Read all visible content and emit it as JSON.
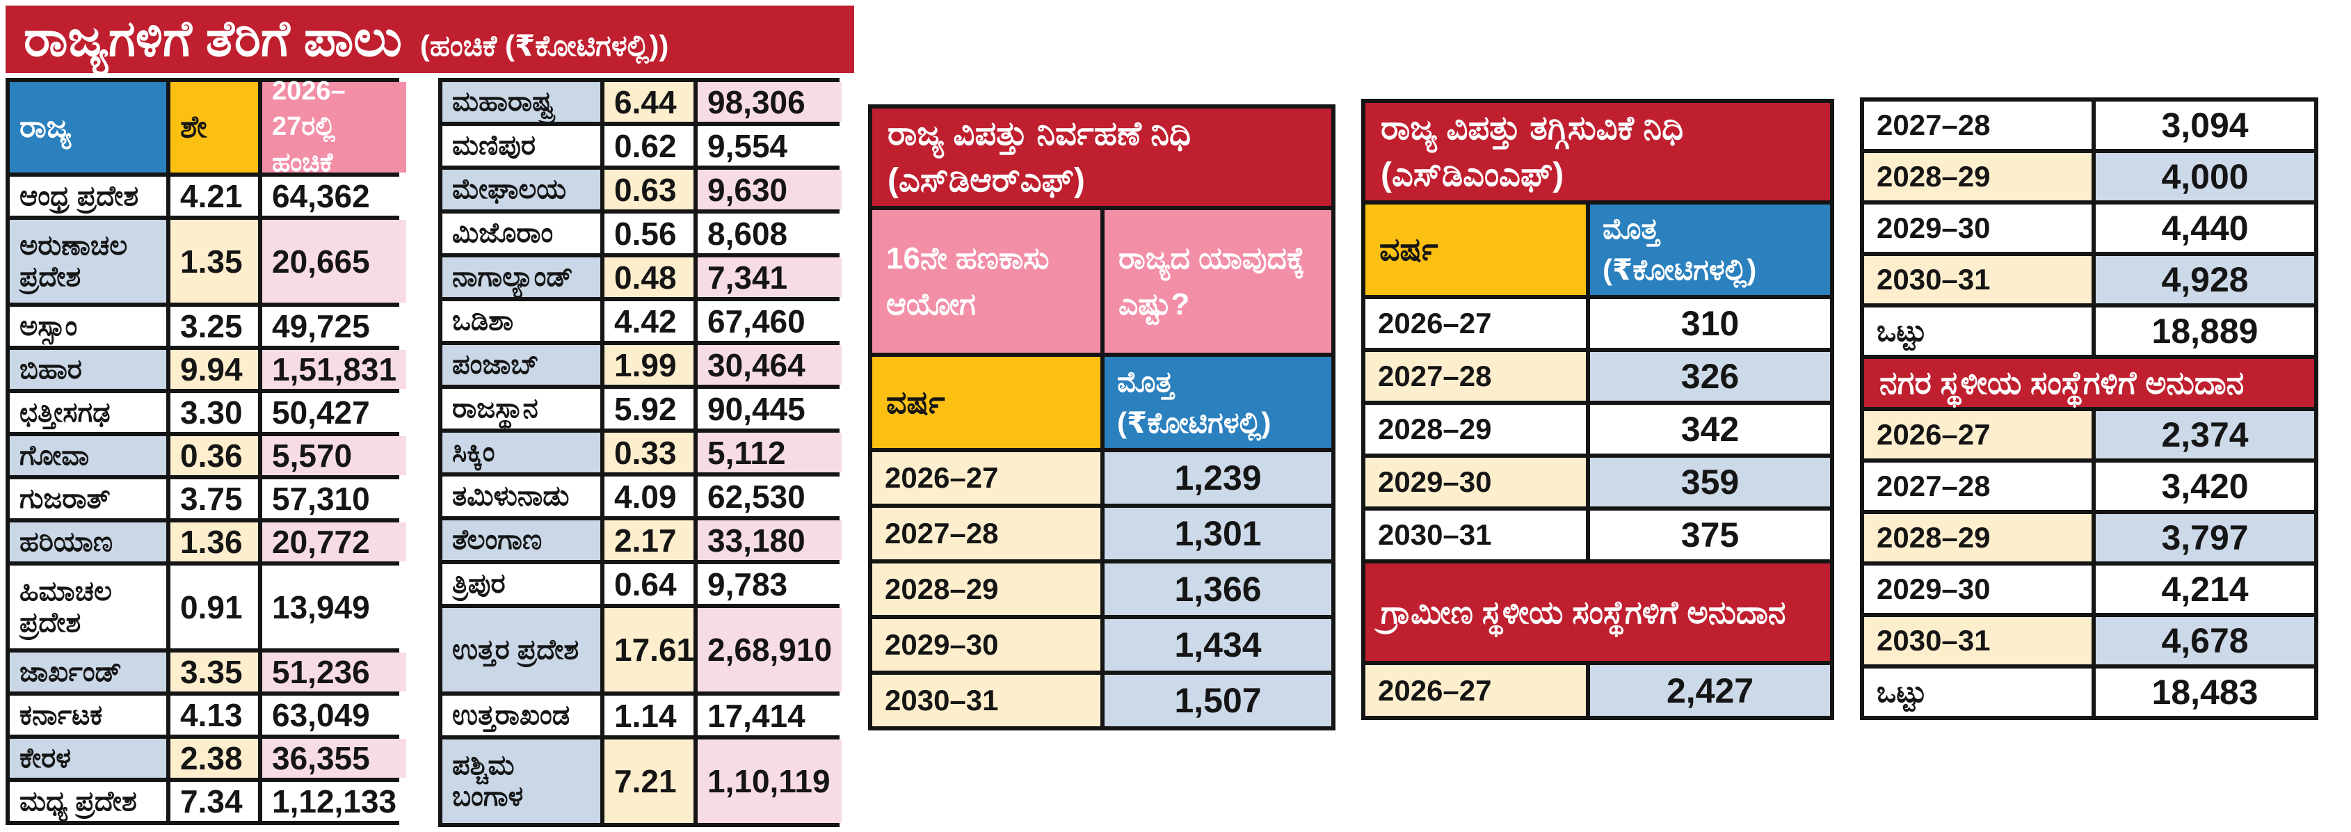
{
  "title": {
    "main": "ರಾಜ್ಯಗಳಿಗೆ ತೆರಿಗೆ ಪಾಲು",
    "sub": "(ಹಂಚಿಕೆ (₹ಕೋಟಿಗಳಲ್ಲಿ))"
  },
  "states": {
    "header_state": "ರಾಜ್ಯ",
    "header_pct": "ಶೇ",
    "header_alloc": "2026–27ರಲ್ಲಿ ಹಂಚಿಕೆ",
    "left_rows": [
      {
        "state": "ಆಂಧ್ರ ಪ್ರದೇಶ",
        "pct": "4.21",
        "alloc": "64,362",
        "shaded": false,
        "tall": false
      },
      {
        "state": "ಅರುಣಾಚಲ ಪ್ರದೇಶ",
        "pct": "1.35",
        "alloc": "20,665",
        "shaded": true,
        "tall": true
      },
      {
        "state": "ಅಸ್ಸಾಂ",
        "pct": "3.25",
        "alloc": "49,725",
        "shaded": false,
        "tall": false
      },
      {
        "state": "ಬಿಹಾರ",
        "pct": "9.94",
        "alloc": "1,51,831",
        "shaded": true,
        "tall": false
      },
      {
        "state": "ಛತ್ತೀಸಗಢ",
        "pct": "3.30",
        "alloc": "50,427",
        "shaded": false,
        "tall": false
      },
      {
        "state": "ಗೋವಾ",
        "pct": "0.36",
        "alloc": "5,570",
        "shaded": true,
        "tall": false
      },
      {
        "state": "ಗುಜರಾತ್",
        "pct": "3.75",
        "alloc": "57,310",
        "shaded": false,
        "tall": false
      },
      {
        "state": "ಹರಿಯಾಣ",
        "pct": "1.36",
        "alloc": "20,772",
        "shaded": true,
        "tall": false
      },
      {
        "state": "ಹಿಮಾಚಲ ಪ್ರದೇಶ",
        "pct": "0.91",
        "alloc": "13,949",
        "shaded": false,
        "tall": true
      },
      {
        "state": "ಜಾರ್ಖಂಡ್",
        "pct": "3.35",
        "alloc": "51,236",
        "shaded": true,
        "tall": false
      },
      {
        "state": "ಕರ್ನಾಟಕ",
        "pct": "4.13",
        "alloc": "63,049",
        "shaded": false,
        "tall": false
      },
      {
        "state": "ಕೇರಳ",
        "pct": "2.38",
        "alloc": "36,355",
        "shaded": true,
        "tall": false
      },
      {
        "state": "ಮಧ್ಯ ಪ್ರದೇಶ",
        "pct": "7.34",
        "alloc": "1,12,133",
        "shaded": false,
        "tall": false
      }
    ],
    "right_rows": [
      {
        "state": "ಮಹಾರಾಷ್ಟ್ರ",
        "pct": "6.44",
        "alloc": "98,306",
        "shaded": true,
        "tall": false
      },
      {
        "state": "ಮಣಿಪುರ",
        "pct": "0.62",
        "alloc": "9,554",
        "shaded": false,
        "tall": false
      },
      {
        "state": "ಮೇಘಾಲಯ",
        "pct": "0.63",
        "alloc": "9,630",
        "shaded": true,
        "tall": false
      },
      {
        "state": "ಮಿಜೊರಾಂ",
        "pct": "0.56",
        "alloc": "8,608",
        "shaded": false,
        "tall": false
      },
      {
        "state": "ನಾಗಾಲ್ಯಾಂಡ್",
        "pct": "0.48",
        "alloc": "7,341",
        "shaded": true,
        "tall": false
      },
      {
        "state": "ಒಡಿಶಾ",
        "pct": "4.42",
        "alloc": "67,460",
        "shaded": false,
        "tall": false
      },
      {
        "state": "ಪಂಜಾಬ್",
        "pct": "1.99",
        "alloc": "30,464",
        "shaded": true,
        "tall": false
      },
      {
        "state": "ರಾಜಸ್ಥಾನ",
        "pct": "5.92",
        "alloc": "90,445",
        "shaded": false,
        "tall": false
      },
      {
        "state": "ಸಿಕ್ಕಿಂ",
        "pct": "0.33",
        "alloc": "5,112",
        "shaded": true,
        "tall": false
      },
      {
        "state": "ತಮಿಳುನಾಡು",
        "pct": "4.09",
        "alloc": "62,530",
        "shaded": false,
        "tall": false
      },
      {
        "state": "ತೆಲಂಗಾಣ",
        "pct": "2.17",
        "alloc": "33,180",
        "shaded": true,
        "tall": false
      },
      {
        "state": "ತ್ರಿಪುರ",
        "pct": "0.64",
        "alloc": "9,783",
        "shaded": false,
        "tall": false
      },
      {
        "state": "ಉತ್ತರ ಪ್ರದೇಶ",
        "pct": "17.61",
        "alloc": "2,68,910",
        "shaded": true,
        "tall": true
      },
      {
        "state": "ಉತ್ತರಾಖಂಡ",
        "pct": "1.14",
        "alloc": "17,414",
        "shaded": false,
        "tall": false
      },
      {
        "state": "ಪಶ್ಚಿಮ ಬಂಗಾಳ",
        "pct": "7.21",
        "alloc": "1,10,119",
        "shaded": true,
        "tall": true
      }
    ]
  },
  "sdrf": {
    "title_line1": "ರಾಜ್ಯ ವಿಪತ್ತು ನಿರ್ವಹಣೆ ನಿಧಿ",
    "title_line2": "(ಎಸ್‌ಡಿಆರ್‌ಎಫ್)",
    "subhead_left": "16ನೇ ಹಣಕಾಸು ಆಯೋಗ",
    "subhead_right": "ರಾಜ್ಯದ ಯಾವುದಕ್ಕೆ ಎಷ್ಟು?",
    "col_year": "ವರ್ಷ",
    "col_amount": "ಮೊತ್ತ (₹ಕೋಟಿಗಳಲ್ಲಿ)",
    "rows": [
      {
        "year": "2026–27",
        "amount": "1,239"
      },
      {
        "year": "2027–28",
        "amount": "1,301"
      },
      {
        "year": "2028–29",
        "amount": "1,366"
      },
      {
        "year": "2029–30",
        "amount": "1,434"
      },
      {
        "year": "2030–31",
        "amount": "1,507"
      }
    ]
  },
  "sdmf": {
    "title_line1": "ರಾಜ್ಯ ವಿಪತ್ತು ತಗ್ಗಿಸುವಿಕೆ ನಿಧಿ",
    "title_line2": "(ಎಸ್‌ಡಿಎಂಎಫ್)",
    "col_year": "ವರ್ಷ",
    "col_amount": "ಮೊತ್ತ (₹ಕೋಟಿಗಳಲ್ಲಿ)",
    "rows": [
      {
        "year": "2026–27",
        "amount": "310",
        "tinted": false
      },
      {
        "year": "2027–28",
        "amount": "326",
        "tinted": true
      },
      {
        "year": "2028–29",
        "amount": "342",
        "tinted": false
      },
      {
        "year": "2029–30",
        "amount": "359",
        "tinted": true
      },
      {
        "year": "2030–31",
        "amount": "375",
        "tinted": false
      }
    ],
    "rural_title": "ಗ್ರಾಮೀಣ ಸ್ಥಳೀಯ ಸಂಸ್ಥೆಗಳಿಗೆ ಅನುದಾನ",
    "rural_rows": [
      {
        "year": "2026–27",
        "amount": "2,427",
        "tinted": true
      }
    ]
  },
  "local": {
    "rural_continued_rows": [
      {
        "year": "2027–28",
        "amount": "3,094",
        "tinted": false
      },
      {
        "year": "2028–29",
        "amount": "4,000",
        "tinted": true
      },
      {
        "year": "2029–30",
        "amount": "4,440",
        "tinted": false
      },
      {
        "year": "2030–31",
        "amount": "4,928",
        "tinted": true
      },
      {
        "year": "ಒಟ್ಟು",
        "amount": "18,889",
        "tinted": false
      }
    ],
    "urban_title": "ನಗರ ಸ್ಥಳೀಯ ಸಂಸ್ಥೆಗಳಿಗೆ ಅನುದಾನ",
    "urban_rows": [
      {
        "year": "2026–27",
        "amount": "2,374",
        "tinted": true
      },
      {
        "year": "2027–28",
        "amount": "3,420",
        "tinted": false
      },
      {
        "year": "2028–29",
        "amount": "3,797",
        "tinted": true
      },
      {
        "year": "2029–30",
        "amount": "4,214",
        "tinted": false
      },
      {
        "year": "2030–31",
        "amount": "4,678",
        "tinted": true
      },
      {
        "year": "ಒಟ್ಟು",
        "amount": "18,483",
        "tinted": false
      }
    ]
  },
  "colors": {
    "red": "#bf1f2f",
    "blue": "#2b80be",
    "yellow": "#fcc013",
    "pink_header": "#f28fa7",
    "row_blue": "#c9d7e6",
    "cream": "#fdeecd",
    "row_pink": "#f8dce5",
    "value_blue": "#ccd9e8",
    "ink": "#151515"
  }
}
